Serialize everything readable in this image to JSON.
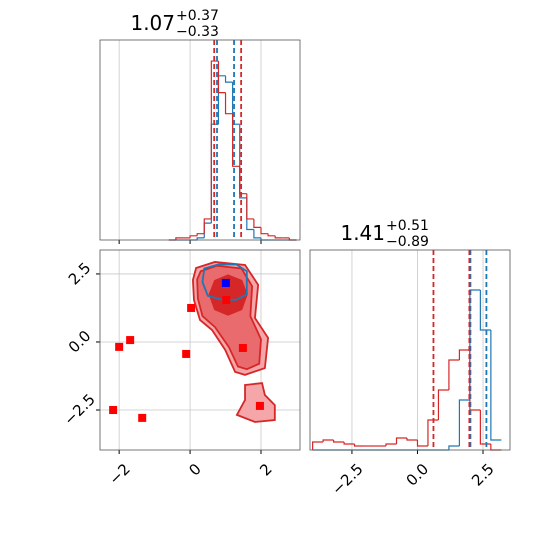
{
  "chart_data": [
    {
      "type": "histogram",
      "title": {
        "value": "1.07",
        "upper": "+0.37",
        "lower": "−0.33"
      },
      "xlim": [
        -2.54,
        3.1
      ],
      "ylim": [
        0,
        0.95
      ],
      "xticks": [
        {
          "value": -2,
          "label": "−2"
        },
        0,
        2
      ],
      "grid": true,
      "bins": [
        -0.6,
        -0.4,
        -0.2,
        0,
        0.2,
        0.4,
        0.6,
        0.8,
        1.0,
        1.2,
        1.4,
        1.6,
        1.8,
        2.0,
        2.2,
        2.4,
        2.6,
        2.8,
        3.0
      ],
      "series": [
        {
          "color": "#1f77b4",
          "values": [
            0,
            0,
            0,
            0,
            0.01,
            0.08,
            0.55,
            0.78,
            0.75,
            0.55,
            0.2,
            0.05,
            0.01,
            0,
            0,
            0,
            0,
            0
          ]
        },
        {
          "color": "#d62728",
          "values": [
            0,
            0.01,
            0.01,
            0.02,
            0.03,
            0.1,
            0.85,
            0.7,
            0.6,
            0.35,
            0.22,
            0.1,
            0.06,
            0.03,
            0.02,
            0.01,
            0.01,
            0
          ]
        }
      ],
      "quantiles": [
        {
          "color": "#1f77b4",
          "values": [
            0.76,
            1.24
          ]
        },
        {
          "color": "#d62728",
          "values": [
            0.68,
            1.44
          ]
        }
      ]
    },
    {
      "type": "scatter",
      "xlim": [
        -2.54,
        3.1
      ],
      "ylim": [
        -3.97,
        3.38
      ],
      "xticks": [
        {
          "value": -2,
          "label": "−2"
        },
        0,
        2
      ],
      "yticks": [
        {
          "value": -2.5,
          "label": "−2.5"
        },
        {
          "value": 0,
          "label": "0.0"
        },
        2.5
      ],
      "grid": true,
      "contours": [
        {
          "color": "#d62728",
          "fill": "#f4a6a8",
          "x": [
            0.17,
            0.7,
            1.55,
            1.92,
            1.83,
            2.2,
            2.11,
            1.55,
            1.27,
            0.99,
            0.62,
            0.28,
            0.11,
            0.08
          ],
          "y": [
            2.72,
            2.94,
            2.83,
            2.1,
            0.88,
            0.15,
            -0.96,
            -1.21,
            -1.1,
            -0.29,
            0.44,
            0.81,
            1.54,
            2.28
          ]
        },
        {
          "color": "#d62728",
          "fill": "#f4a6a8",
          "x": [
            1.55,
            2.03,
            2.11,
            2.39,
            2.39,
            1.83,
            1.32,
            1.55
          ],
          "y": [
            -1.58,
            -1.51,
            -1.95,
            -2.32,
            -2.87,
            -2.94,
            -2.68,
            -2.13
          ]
        },
        {
          "color": "#d62728",
          "fill": "#ea6b6e",
          "x": [
            0.3,
            0.75,
            1.45,
            1.75,
            1.7,
            2.0,
            1.95,
            1.6,
            1.35,
            1.1,
            0.7,
            0.35,
            0.22,
            0.2
          ],
          "y": [
            2.6,
            2.8,
            2.7,
            2.05,
            0.95,
            0.1,
            -0.8,
            -1.0,
            -0.9,
            -0.2,
            0.55,
            0.95,
            1.6,
            2.3
          ]
        },
        {
          "color": "#d62728",
          "fill": "#d62728",
          "x": [
            0.55,
            0.7,
            1.07,
            1.45,
            1.6,
            1.45,
            1.07,
            0.7
          ],
          "y": [
            1.75,
            2.25,
            2.45,
            2.25,
            1.75,
            1.2,
            1.0,
            1.2
          ]
        },
        {
          "color": "#1f77b4",
          "fill": "none",
          "x": [
            0.4,
            0.8,
            1.3,
            1.6,
            1.6,
            1.3,
            0.9,
            0.5,
            0.35
          ],
          "y": [
            2.7,
            2.85,
            2.85,
            2.6,
            1.75,
            1.55,
            1.55,
            1.7,
            2.2
          ]
        }
      ],
      "points": {
        "color": "#ff0000",
        "x": [
          -2.17,
          -2.0,
          -1.69,
          -1.35,
          -0.11,
          0.03,
          1.02,
          1.49,
          1.97
        ],
        "y": [
          -2.5,
          -0.18,
          0.07,
          -2.79,
          -0.44,
          1.25,
          1.54,
          -0.22,
          -2.35
        ]
      },
      "truth": {
        "color": "#0000ff",
        "x": [
          1.01
        ],
        "y": [
          2.17
        ]
      }
    },
    {
      "type": "histogram",
      "title": {
        "value": "1.41",
        "upper": "+0.51",
        "lower": "−0.89"
      },
      "xlim": [
        -4.1,
        3.53
      ],
      "ylim": [
        0,
        1
      ],
      "xticks": [
        {
          "value": -2.5,
          "label": "−2.5"
        },
        {
          "value": 0,
          "label": "0.0"
        },
        2.5
      ],
      "grid": true,
      "bins": [
        -4.0,
        -3.6,
        -3.2,
        -2.8,
        -2.4,
        -2.0,
        -1.6,
        -1.2,
        -0.8,
        -0.4,
        0,
        0.4,
        0.8,
        1.2,
        1.6,
        2.0,
        2.4,
        2.8,
        3.2
      ],
      "series": [
        {
          "color": "#1f77b4",
          "values": [
            0,
            0,
            0,
            0,
            0,
            0,
            0,
            0,
            0,
            0,
            0,
            0,
            0,
            0.02,
            0.25,
            0.8,
            0.6,
            0.05
          ]
        },
        {
          "color": "#d62728",
          "values": [
            0.04,
            0.05,
            0.04,
            0.03,
            0.02,
            0.02,
            0.02,
            0.03,
            0.06,
            0.05,
            0.02,
            0.15,
            0.3,
            0.45,
            0.5,
            0.2,
            0.03,
            0
          ]
        }
      ],
      "quantiles": [
        {
          "color": "#1f77b4",
          "values": [
            2.02,
            2.63
          ]
        },
        {
          "color": "#d62728",
          "values": [
            0.61,
            1.98
          ]
        }
      ]
    }
  ]
}
